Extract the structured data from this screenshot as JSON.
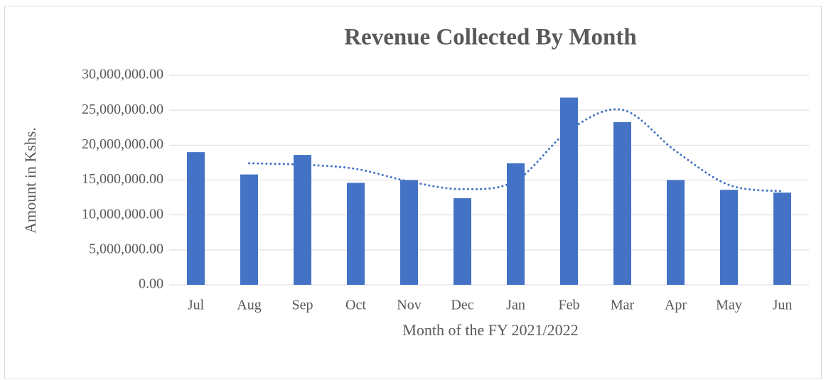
{
  "chart_data": {
    "type": "bar",
    "title": "Revenue Collected By Month",
    "x_label": "Month of the FY 2021/2022",
    "y_label": "Amount in Kshs.",
    "categories": [
      "Jul",
      "Aug",
      "Sep",
      "Oct",
      "Nov",
      "Dec",
      "Jan",
      "Feb",
      "Mar",
      "Apr",
      "May",
      "Jun"
    ],
    "values": [
      19000000,
      15800000,
      18600000,
      14600000,
      15000000,
      12400000,
      17400000,
      26800000,
      23300000,
      15000000,
      13600000,
      13200000
    ],
    "color": "#4472c4",
    "trendline": {
      "style": "dotted",
      "color": "#4472c4",
      "values": [
        null,
        17400000,
        17200000,
        16600000,
        14800000,
        13700000,
        14900000,
        22100000,
        25050000,
        19150000,
        14300000,
        13400000
      ]
    },
    "ylim": [
      0,
      30000000
    ],
    "yticks": [
      {
        "value": 0,
        "label": "0.00"
      },
      {
        "value": 5000000,
        "label": "5,000,000.00"
      },
      {
        "value": 10000000,
        "label": "10,000,000.00"
      },
      {
        "value": 15000000,
        "label": "15,000,000.00"
      },
      {
        "value": 20000000,
        "label": "20,000,000.00"
      },
      {
        "value": 25000000,
        "label": "25,000,000.00"
      },
      {
        "value": 30000000,
        "label": "30,000,000.00"
      }
    ],
    "grid": true
  }
}
